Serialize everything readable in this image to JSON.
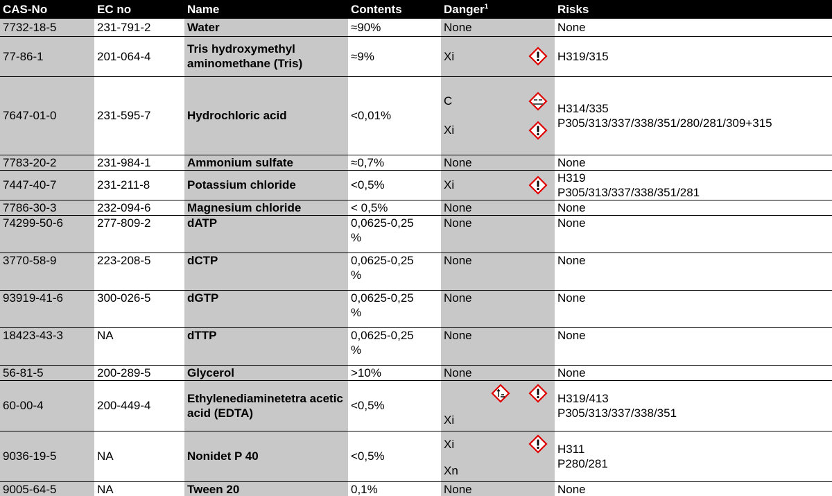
{
  "table": {
    "header": [
      "CAS-No",
      "EC no",
      "Name",
      "Contents",
      "Danger",
      "Risks"
    ],
    "header_note": "1",
    "rows": [
      {
        "cas": "7732-18-5",
        "ec": "231-791-2",
        "name": "Water",
        "contents": "≈90%",
        "danger": [
          "None"
        ],
        "risks": [
          "None"
        ]
      },
      {
        "cas": "77-86-1",
        "ec": "201-064-4",
        "name": "Tris hydroxymethyl aminomethane (Tris)",
        "contents": "≈9%",
        "danger": [
          "Xi"
        ],
        "risks": [
          "H319/315"
        ]
      },
      {
        "cas": "7647-01-0",
        "ec": "231-595-7",
        "name": "Hydrochloric acid",
        "contents": "<0,01%",
        "danger": [
          "C",
          "Xi"
        ],
        "risks": [
          "H314/335",
          "P305/313/337/338/351/280/281/309+315"
        ]
      },
      {
        "cas": "7783-20-2",
        "ec": "231-984-1",
        "name": "Ammonium sulfate",
        "contents": "≈0,7%",
        "danger": [
          "None"
        ],
        "risks": [
          "None"
        ]
      },
      {
        "cas": "7447-40-7",
        "ec": "231-211-8",
        "name": "Potassium chloride",
        "contents": "<0,5%",
        "danger": [
          "Xi"
        ],
        "risks": [
          "H319",
          "P305/313/337/338/351/281"
        ]
      },
      {
        "cas": "7786-30-3",
        "ec": "232-094-6",
        "name": "Magnesium chloride",
        "contents": "< 0,5%",
        "danger": [
          "None"
        ],
        "risks": [
          "None"
        ]
      },
      {
        "cas": "74299-50-6",
        "ec": "277-809-2",
        "name": "dATP",
        "contents": "0,0625-0,25 %",
        "danger": [
          "None"
        ],
        "risks": [
          "None"
        ]
      },
      {
        "cas": "3770-58-9",
        "ec": "223-208-5",
        "name": "dCTP",
        "contents": "0,0625-0,25 %",
        "danger": [
          "None"
        ],
        "risks": [
          "None"
        ]
      },
      {
        "cas": "93919-41-6",
        "ec": "300-026-5",
        "name": "dGTP",
        "contents": "0,0625-0,25 %",
        "danger": [
          "None"
        ],
        "risks": [
          "None"
        ]
      },
      {
        "cas": "18423-43-3",
        "ec": "NA",
        "name": "dTTP",
        "contents": "0,0625-0,25 %",
        "danger": [
          "None"
        ],
        "risks": [
          "None"
        ]
      },
      {
        "cas": "56-81-5",
        "ec": "200-289-5",
        "name": "Glycerol",
        "contents": ">10%",
        "danger": [
          "None"
        ],
        "risks": [
          "None"
        ]
      },
      {
        "cas": "60-00-4",
        "ec": "200-449-4",
        "name": "Ethylenediaminetetra acetic acid  (EDTA)",
        "contents": "<0,5%",
        "danger": [
          "Xi"
        ],
        "risks": [
          "H319/413",
          "P305/313/337/338/351"
        ]
      },
      {
        "cas": "9036-19-5",
        "ec": "NA",
        "name": "Nonidet P 40",
        "contents": "<0,5%",
        "danger": [
          "Xi",
          "Xn"
        ],
        "risks": [
          "H311",
          "P280/281"
        ]
      },
      {
        "cas": "9005-64-5",
        "ec": "NA",
        "name": "Tween 20",
        "contents": "0,1%",
        "danger": [
          "None"
        ],
        "risks": [
          "None"
        ]
      }
    ]
  }
}
